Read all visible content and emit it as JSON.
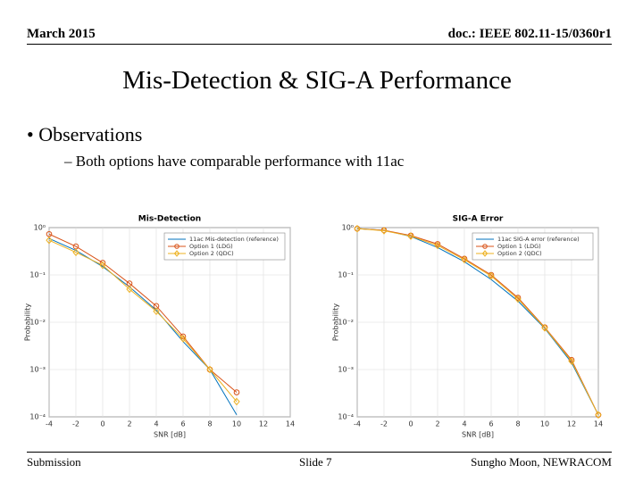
{
  "header": {
    "date": "March 2015",
    "doc": "doc.: IEEE 802.11-15/0360r1"
  },
  "title": "Mis-Detection & SIG-A Performance",
  "bullets": [
    {
      "text": "Observations",
      "sub": [
        "Both options have comparable performance with 11ac"
      ]
    }
  ],
  "chart_data": [
    {
      "type": "line",
      "title": "Mis-Detection",
      "xlabel": "SNR [dB]",
      "ylabel": "Probability",
      "yscale": "log",
      "grid": true,
      "legend": "upper right",
      "x": [
        -4,
        -2,
        0,
        2,
        4,
        6,
        8,
        10
      ],
      "xlim": [
        -4,
        14
      ],
      "xticks": [
        -4,
        -2,
        0,
        2,
        4,
        6,
        8,
        10,
        12,
        14
      ],
      "ylim": [
        0.0001,
        1
      ],
      "yticks": [
        {
          "value": 0.0001,
          "label": "10⁻⁴"
        },
        {
          "value": 0.001,
          "label": "10⁻³"
        },
        {
          "value": 0.01,
          "label": "10⁻²"
        },
        {
          "value": 0.1,
          "label": "10⁻¹"
        },
        {
          "value": 1,
          "label": "10⁰"
        }
      ],
      "series": [
        {
          "name": "11ac Mis-detection (reference)",
          "color": "#0072bd",
          "marker": null,
          "values": [
            0.59,
            0.33,
            0.15,
            0.056,
            0.018,
            0.0039,
            0.001,
            0.00011
          ]
        },
        {
          "name": "Option 1 (LDG)",
          "color": "#d95319",
          "marker": "circle",
          "values": [
            0.73,
            0.4,
            0.18,
            0.066,
            0.022,
            0.005,
            0.001,
            0.00033
          ]
        },
        {
          "name": "Option 2 (QDC)",
          "color": "#edb120",
          "marker": "diamond",
          "values": [
            0.54,
            0.3,
            0.16,
            0.05,
            0.017,
            0.0045,
            0.001,
            0.00021
          ]
        }
      ]
    },
    {
      "type": "line",
      "title": "SIG-A Error",
      "xlabel": "SNR [dB]",
      "ylabel": "Probability",
      "yscale": "log",
      "grid": true,
      "legend": "upper right",
      "x": [
        -4,
        -2,
        0,
        2,
        4,
        6,
        8,
        10,
        12,
        14
      ],
      "xlim": [
        -4,
        14
      ],
      "xticks": [
        -4,
        -2,
        0,
        2,
        4,
        6,
        8,
        10,
        12,
        14
      ],
      "ylim": [
        0.0001,
        1
      ],
      "yticks": [
        {
          "value": 0.0001,
          "label": "10⁻⁴"
        },
        {
          "value": 0.001,
          "label": "10⁻³"
        },
        {
          "value": 0.01,
          "label": "10⁻²"
        },
        {
          "value": 0.1,
          "label": "10⁻¹"
        },
        {
          "value": 1,
          "label": "10⁰"
        }
      ],
      "series": [
        {
          "name": "11ac SIG-A error (reference)",
          "color": "#0072bd",
          "marker": null,
          "values": [
            0.95,
            0.88,
            0.65,
            0.38,
            0.19,
            0.08,
            0.028,
            0.0074,
            0.0014,
            0.00011
          ]
        },
        {
          "name": "Option 1 (LDG)",
          "color": "#d95319",
          "marker": "circle",
          "values": [
            0.95,
            0.88,
            0.68,
            0.45,
            0.22,
            0.1,
            0.033,
            0.0078,
            0.0016,
            0.00011
          ]
        },
        {
          "name": "Option 2 (QDC)",
          "color": "#edb120",
          "marker": "diamond",
          "values": [
            0.95,
            0.86,
            0.66,
            0.42,
            0.21,
            0.095,
            0.031,
            0.0076,
            0.0015,
            0.00011
          ]
        }
      ]
    }
  ],
  "footer": {
    "left": "Submission",
    "center": "Slide 7",
    "right": "Sungho Moon, NEWRACOM"
  }
}
